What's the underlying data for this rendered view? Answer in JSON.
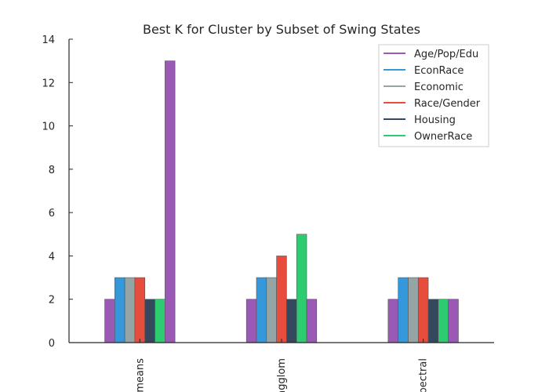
{
  "chart_data": {
    "type": "bar",
    "title": "Best K for Cluster by Subset of Swing States",
    "xlabel": "",
    "ylabel": "",
    "categories": [
      "kmeans",
      "agglom",
      "spectral"
    ],
    "ylim": [
      0,
      14
    ],
    "yticks": [
      0,
      2,
      4,
      6,
      8,
      10,
      12,
      14
    ],
    "grid": false,
    "legend_position": "top-right",
    "series": [
      {
        "name": "Age/Pop/Edu",
        "color": "#9b59b6",
        "values": [
          2,
          2,
          2
        ]
      },
      {
        "name": "EconRace",
        "color": "#3498db",
        "values": [
          3,
          3,
          3
        ]
      },
      {
        "name": "Economic",
        "color": "#95a5a6",
        "values": [
          3,
          3,
          3
        ]
      },
      {
        "name": "Race/Gender",
        "color": "#e74c3c",
        "values": [
          3,
          4,
          3
        ]
      },
      {
        "name": "Housing",
        "color": "#34495e",
        "values": [
          2,
          2,
          2
        ]
      },
      {
        "name": "OwnerRace",
        "color": "#2ecc71",
        "values": [
          2,
          5,
          2
        ]
      },
      {
        "name": "",
        "color": "#9b59b6",
        "values": [
          13,
          2,
          2
        ]
      }
    ]
  }
}
